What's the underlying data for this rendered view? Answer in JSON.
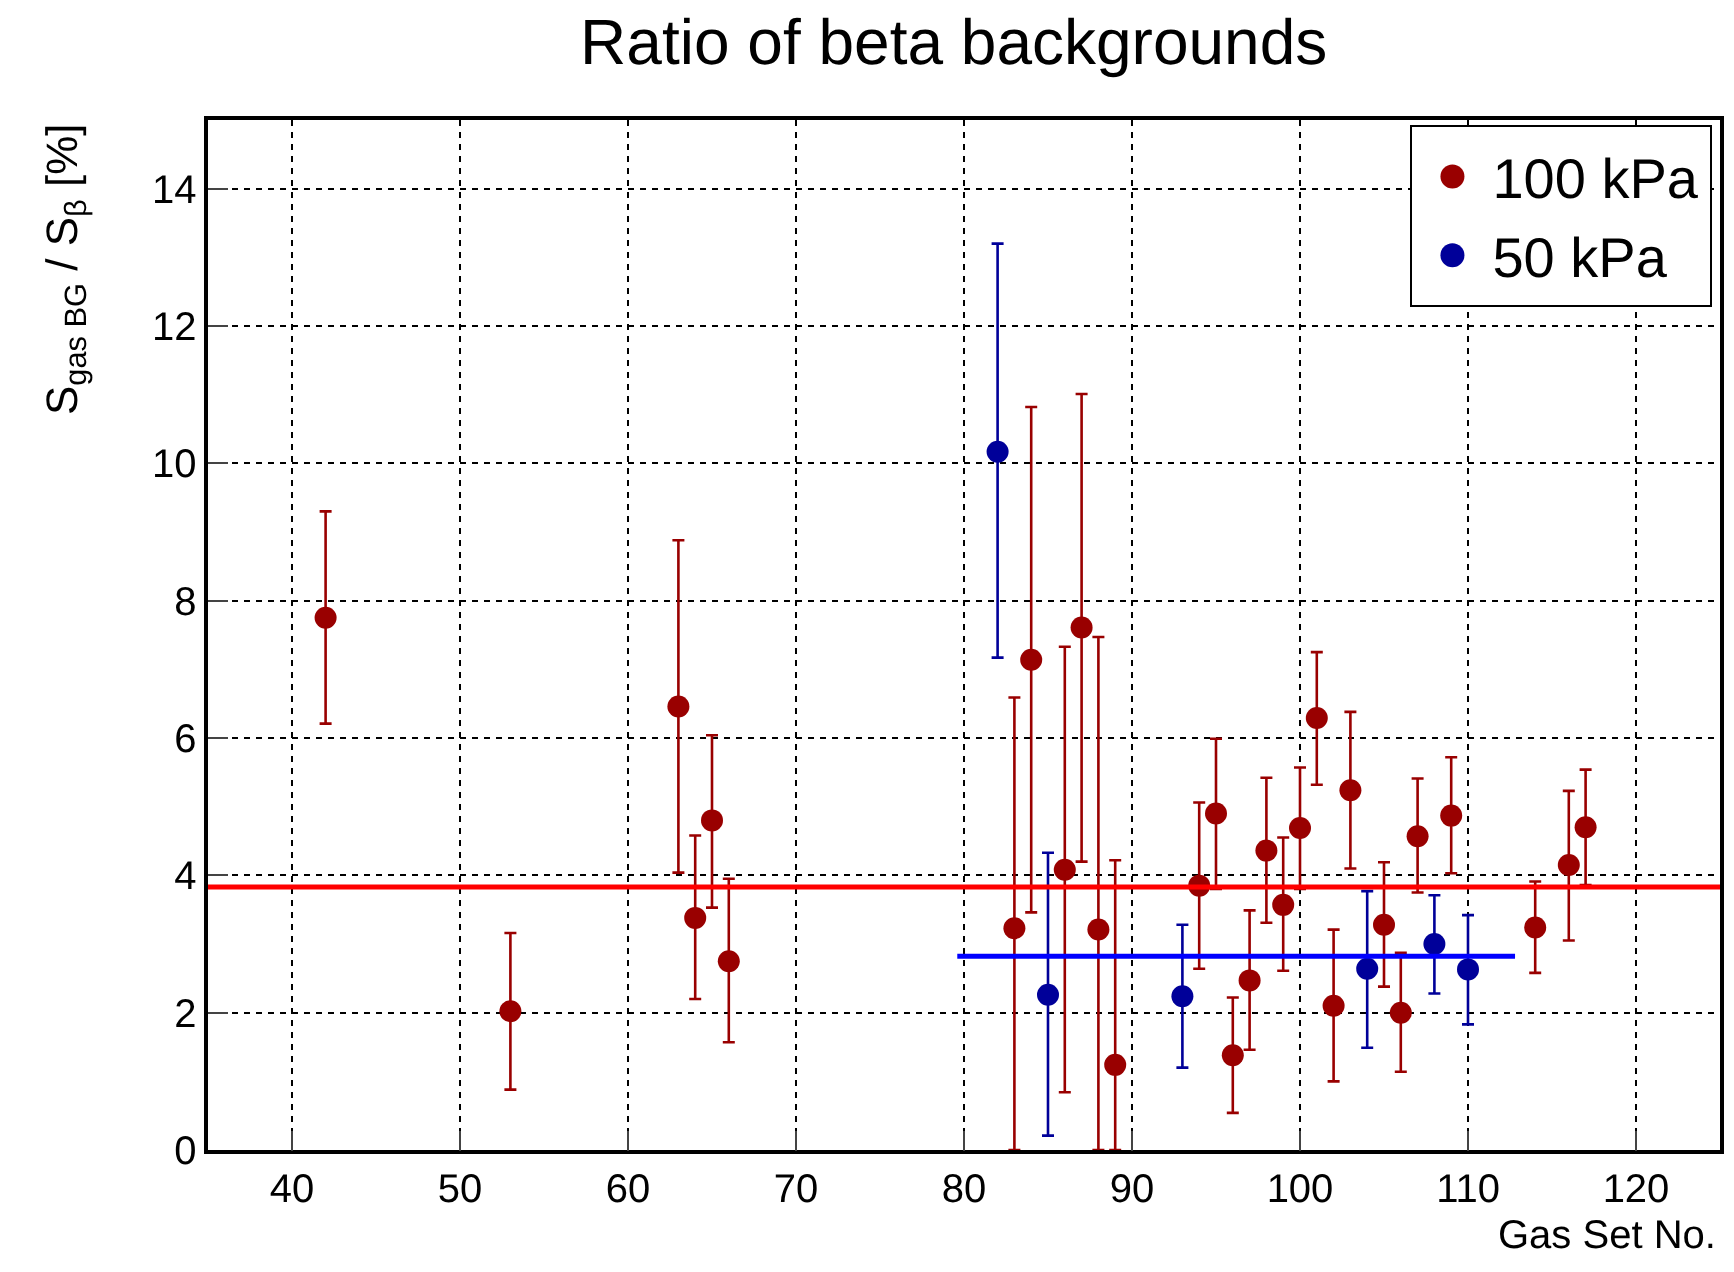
{
  "chart_data": {
    "type": "scatter",
    "title": "Ratio of beta backgrounds",
    "xlabel": "Gas Set No.",
    "ylabel": "S$_{gas BG}$ / S$_{β}$ [%]",
    "xlim": [
      35,
      125
    ],
    "xticks": [
      40,
      50,
      60,
      70,
      80,
      90,
      100,
      110,
      120
    ],
    "ylim": [
      0,
      15
    ],
    "yticks": [
      0,
      2,
      4,
      6,
      8,
      10,
      12,
      14
    ],
    "grid": true,
    "legend": "top right",
    "marker": "circle",
    "series": [
      {
        "name": "100 kPa",
        "color": "#990000",
        "x": [
          42,
          53,
          63,
          64,
          65,
          66,
          83,
          84,
          86,
          87,
          88,
          89,
          94,
          95,
          96,
          97,
          98,
          99,
          100,
          101,
          102,
          103,
          105,
          106,
          107,
          109,
          114,
          116,
          117
        ],
        "values": [
          7.75,
          2.02,
          6.46,
          3.38,
          4.8,
          2.75,
          3.23,
          7.14,
          4.08,
          7.61,
          3.21,
          1.24,
          3.85,
          4.9,
          1.38,
          2.47,
          4.36,
          3.57,
          4.69,
          6.29,
          2.1,
          5.24,
          3.28,
          2.0,
          4.57,
          4.87,
          3.24,
          4.15,
          4.7
        ],
        "errors": [
          [
            6.21,
            9.3
          ],
          [
            0.88,
            3.16
          ],
          [
            4.04,
            8.88
          ],
          [
            2.2,
            4.58
          ],
          [
            3.53,
            6.04
          ],
          [
            1.57,
            3.95
          ],
          [
            0,
            6.59
          ],
          [
            3.46,
            10.82
          ],
          [
            0.84,
            7.33
          ],
          [
            4.2,
            11.01
          ],
          [
            0,
            7.47
          ],
          [
            0,
            4.22
          ],
          [
            2.64,
            5.06
          ],
          [
            3.8,
            5.99
          ],
          [
            0.54,
            2.22
          ],
          [
            1.46,
            3.49
          ],
          [
            3.31,
            5.42
          ],
          [
            2.61,
            4.55
          ],
          [
            3.8,
            5.57
          ],
          [
            5.32,
            7.25
          ],
          [
            1.0,
            3.21
          ],
          [
            4.1,
            6.38
          ],
          [
            2.38,
            4.19
          ],
          [
            1.14,
            2.87
          ],
          [
            3.75,
            5.41
          ],
          [
            4.03,
            5.72
          ],
          [
            2.58,
            3.91
          ],
          [
            3.05,
            5.23
          ],
          [
            3.86,
            5.54
          ]
        ]
      },
      {
        "name": "50 kPa",
        "color": "#000099",
        "x": [
          82,
          85,
          93,
          104,
          108,
          110
        ],
        "values": [
          10.17,
          2.26,
          2.24,
          2.64,
          3.0,
          2.63
        ],
        "errors": [
          [
            7.17,
            13.2
          ],
          [
            0.21,
            4.33
          ],
          [
            1.2,
            3.28
          ],
          [
            1.49,
            3.77
          ],
          [
            2.28,
            3.71
          ],
          [
            1.83,
            3.42
          ]
        ]
      },
      {
        "type": "line",
        "marker": "none",
        "color": "#0000ff",
        "x": [
          79.6,
          112.8
        ],
        "values": [
          2.82,
          2.82
        ]
      }
    ],
    "ref_lines": [
      {
        "axis": "y",
        "value": 3.83,
        "color": "#ff0000"
      }
    ]
  }
}
